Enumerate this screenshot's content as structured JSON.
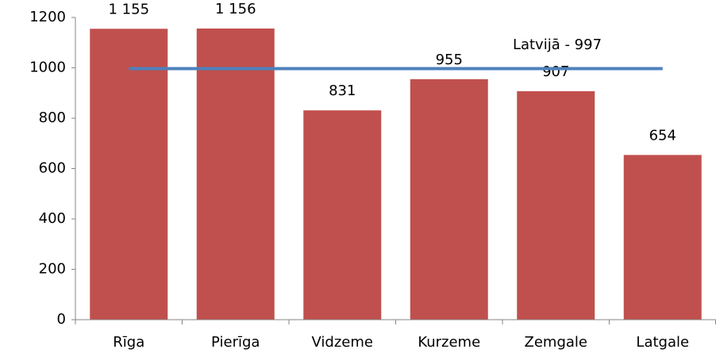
{
  "chart_data": {
    "type": "bar",
    "categories": [
      "Rīga",
      "Pierīga",
      "Vidzeme",
      "Kurzeme",
      "Zemgale",
      "Latgale"
    ],
    "values": [
      1155,
      1156,
      831,
      955,
      907,
      654
    ],
    "value_labels": [
      "1 155",
      "1 156",
      "831",
      "955",
      "907",
      "654"
    ],
    "color": "#c0504d",
    "ylim": [
      0,
      1200
    ],
    "yticks": [
      0,
      200,
      400,
      600,
      800,
      1000,
      1200
    ],
    "reference_line": {
      "value": 997,
      "label": "Latvijā - 997",
      "color": "#4f81bd"
    }
  }
}
